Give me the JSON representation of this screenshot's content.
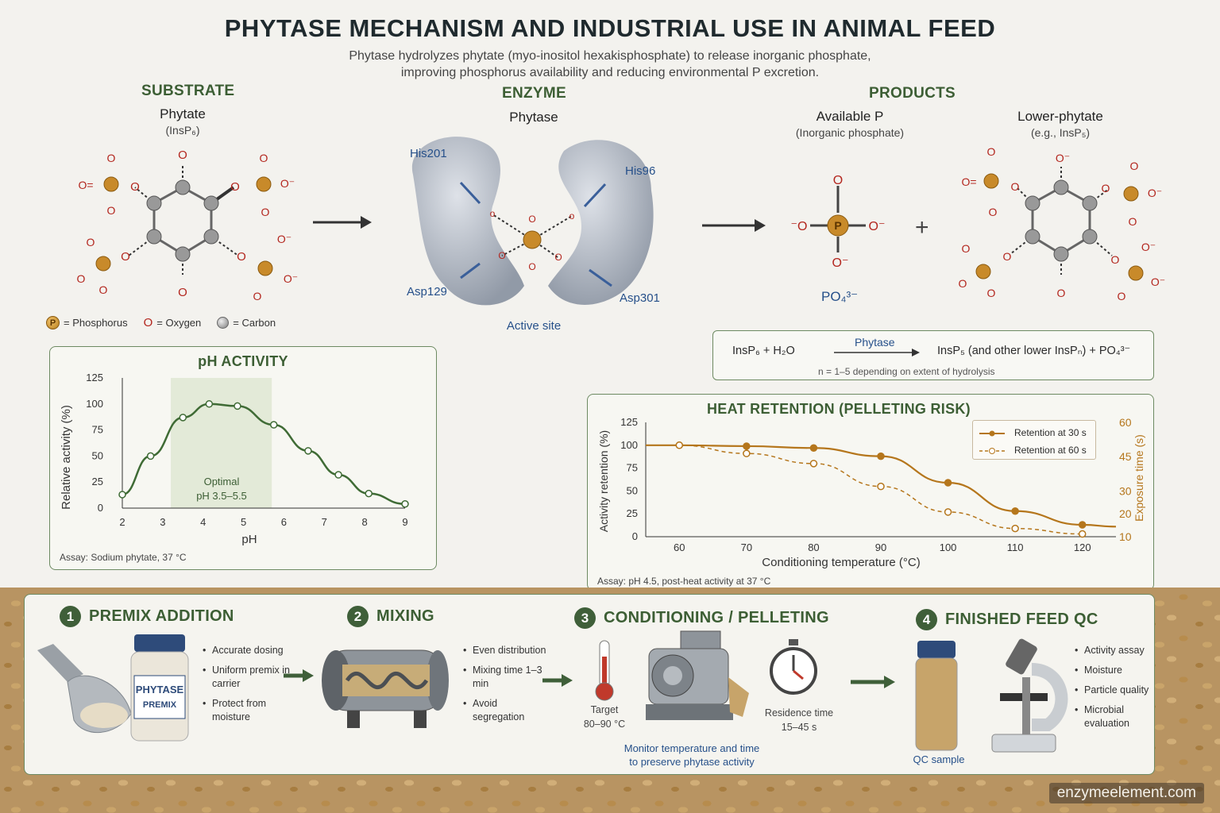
{
  "header": {
    "title": "PHYTASE MECHANISM AND INDUSTRIAL USE IN ANIMAL FEED",
    "subtitle_line1": "Phytase hydrolyzes phytate (myo-inositol hexakisphosphate) to release inorganic phosphate,",
    "subtitle_line2": "improving phosphorus availability and reducing environmental P excretion."
  },
  "substrate": {
    "heading": "SUBSTRATE",
    "name": "Phytate",
    "formula": "(InsP₆)"
  },
  "enzyme": {
    "heading": "ENZYME",
    "name": "Phytase",
    "residues": [
      "His201",
      "His96",
      "Asp129",
      "Asp301"
    ],
    "active_site": "Active site"
  },
  "products": {
    "heading": "PRODUCTS",
    "p1_name": "Available P",
    "p1_sub": "(Inorganic phosphate)",
    "p1_formula": "PO₄³⁻",
    "plus": "+",
    "p2_name": "Lower-phytate",
    "p2_sub": "(e.g., InsP₅)"
  },
  "legend": {
    "phosphorus": "= Phosphorus",
    "oxygen": "= Oxygen",
    "carbon": "= Carbon",
    "p_symbol": "P",
    "o_symbol": "O"
  },
  "equation": {
    "left": "InsP₆  +  H₂O",
    "enzyme": "Phytase",
    "right": "InsP₅ (and other lower InsPₙ)  +  PO₄³⁻",
    "note": "n = 1–5 depending on extent of hydrolysis"
  },
  "ph_chart": {
    "title": "pH ACTIVITY",
    "xlabel": "pH",
    "ylabel": "Relative activity (%)",
    "optimal_label": "Optimal",
    "optimal_range": "pH 3.5–5.5",
    "assay": "Assay: Sodium phytate, 37 °C"
  },
  "heat_chart": {
    "title": "HEAT RETENTION (PELLETING RISK)",
    "xlabel": "Conditioning temperature (°C)",
    "ylabel": "Activity retention (%)",
    "y2label": "Exposure time (s)",
    "legend_30": "Retention at 30 s",
    "legend_60": "Retention at 60 s",
    "assay": "Assay: pH 4.5, post-heat activity at 37 °C"
  },
  "chart_data": [
    {
      "type": "line",
      "title": "pH ACTIVITY",
      "xlabel": "pH",
      "ylabel": "Relative activity (%)",
      "xlim": [
        2,
        9
      ],
      "ylim": [
        0,
        125
      ],
      "xticks": [
        2,
        3,
        4,
        5,
        6,
        7,
        8,
        9
      ],
      "yticks": [
        0,
        25,
        50,
        75,
        100,
        125
      ],
      "series": [
        {
          "x": [
            2.0,
            2.7,
            3.5,
            4.15,
            4.85,
            5.75,
            6.6,
            7.35,
            8.1,
            9.0
          ],
          "values": [
            13,
            50,
            87,
            100,
            98,
            80,
            55,
            32,
            14,
            4
          ]
        }
      ],
      "shaded_region": [
        3.2,
        5.7
      ],
      "annotation": "Optimal pH 3.5–5.5",
      "grid": false
    },
    {
      "type": "line",
      "title": "HEAT RETENTION (PELLETING RISK)",
      "xlabel": "Conditioning temperature (°C)",
      "ylabel": "Activity retention (%)",
      "y2label": "Exposure time (s)",
      "xlim": [
        55,
        125
      ],
      "ylim": [
        0,
        125
      ],
      "y2lim": [
        10,
        60
      ],
      "xticks": [
        60,
        70,
        80,
        90,
        100,
        110,
        120
      ],
      "yticks": [
        0,
        25,
        50,
        75,
        100,
        125
      ],
      "y2ticks": [
        10,
        20,
        30,
        45,
        60
      ],
      "series": [
        {
          "name": "Retention at 30 s",
          "x": [
            55,
            60,
            70,
            80,
            90,
            100,
            110,
            120,
            125
          ],
          "values": [
            100,
            100,
            99,
            97,
            88,
            59,
            28,
            13,
            11
          ]
        },
        {
          "name": "Retention at 60 s",
          "x": [
            60,
            70,
            80,
            90,
            100,
            110,
            120
          ],
          "values": [
            100,
            91,
            80,
            55,
            27,
            9,
            3
          ]
        }
      ],
      "legend": "top-right",
      "grid": false
    }
  ],
  "process": {
    "steps": [
      {
        "num": "1",
        "title": "PREMIX ADDITION",
        "bullets": [
          "Accurate dosing",
          "Uniform premix in carrier",
          "Protect from moisture"
        ],
        "jar_label_1": "PHYTASE",
        "jar_label_2": "PREMIX"
      },
      {
        "num": "2",
        "title": "MIXING",
        "bullets": [
          "Even distribution",
          "Mixing time 1–3 min",
          "Avoid segregation"
        ]
      },
      {
        "num": "3",
        "title": "CONDITIONING / PELLETING",
        "target_label": "Target",
        "target_value": "80–90 °C",
        "residence_label": "Residence time",
        "residence_value": "15–45 s",
        "monitor_line1": "Monitor temperature and time",
        "monitor_line2": "to preserve phytase activity"
      },
      {
        "num": "4",
        "title": "FINISHED FEED QC",
        "bullets": [
          "Activity assay",
          "Moisture",
          "Particle quality",
          "Microbial evaluation"
        ],
        "qc_sample": "QC sample"
      }
    ]
  },
  "footer": {
    "site": "enzymeelement.com"
  },
  "colors": {
    "accent_green": "#3c5e34",
    "residue_blue": "#26508a",
    "phosphorus_orange": "#c88a2a",
    "oxygen_red": "#b3261e",
    "heat_line": "#b5761c"
  }
}
